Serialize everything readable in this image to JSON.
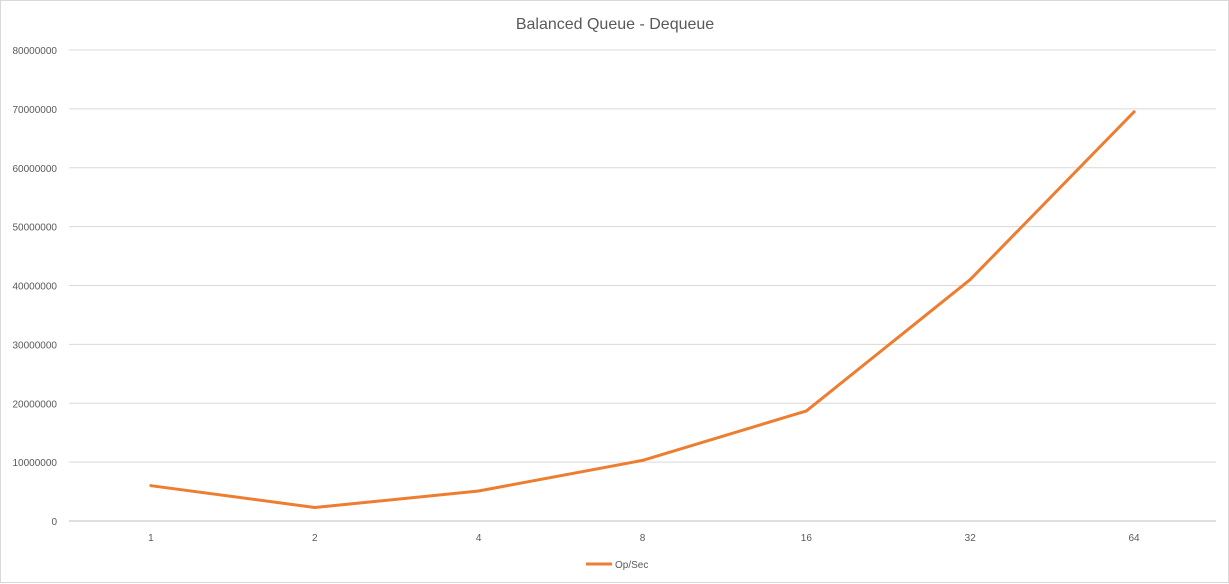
{
  "chart_data": {
    "type": "line",
    "title": "Balanced Queue - Dequeue",
    "xlabel": "",
    "ylabel": "",
    "categories": [
      "1",
      "2",
      "4",
      "8",
      "16",
      "32",
      "64"
    ],
    "series": [
      {
        "name": "Op/Sec",
        "values": [
          6000000,
          2300000,
          5100000,
          10300000,
          18700000,
          41000000,
          69500000
        ],
        "color": "#ED7D31"
      }
    ],
    "ylim": [
      0,
      80000000
    ],
    "yticks": [
      "0",
      "10000000",
      "20000000",
      "30000000",
      "40000000",
      "50000000",
      "60000000",
      "70000000",
      "80000000"
    ],
    "grid": true,
    "legend_position": "bottom"
  }
}
